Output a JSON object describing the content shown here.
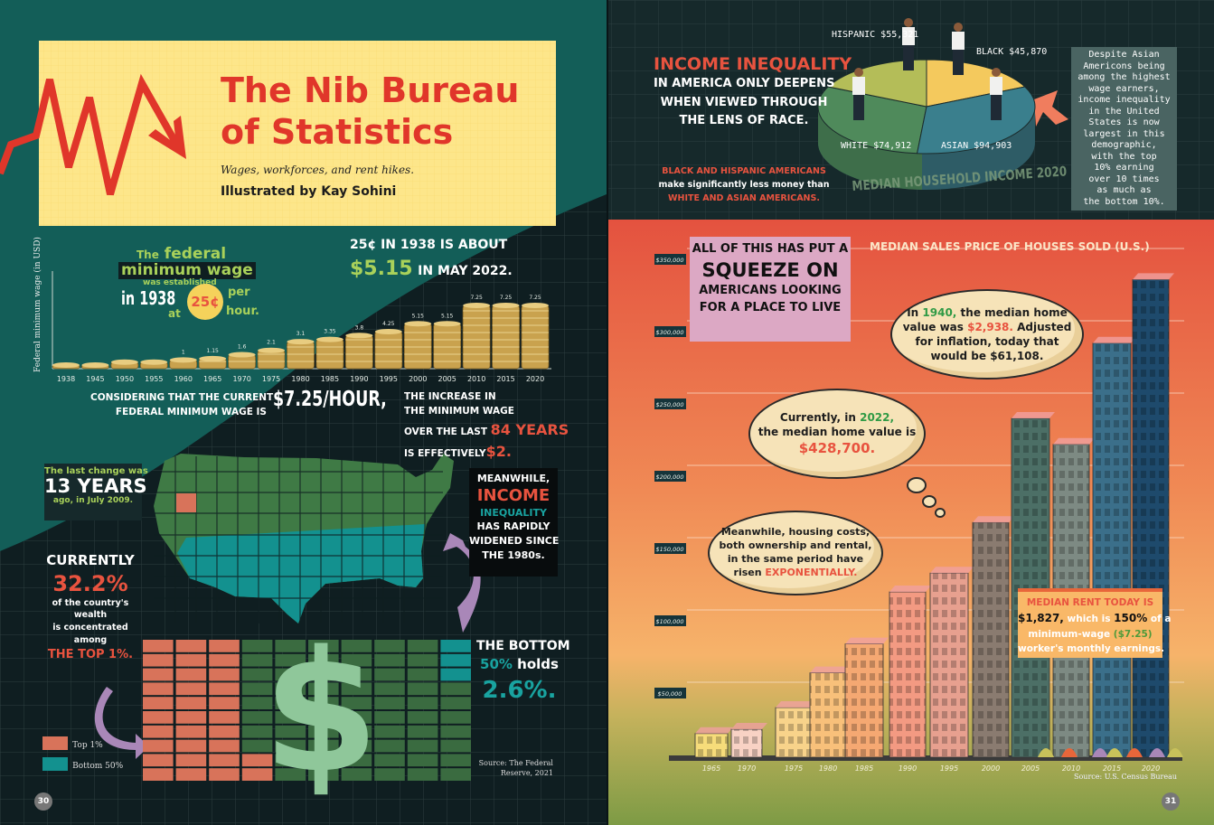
{
  "colors": {
    "red": "#e8533f",
    "teal": "#19a3a0",
    "green": "#a9d15a",
    "dark": "#0f1e21",
    "pageTeal": "#135e58",
    "yellow": "#fde68a",
    "coin": "#c9a24e",
    "top1": "#d8735a",
    "bottom50": "#13918f",
    "waffleRest": "#3a6b40"
  },
  "left_page": {
    "title_line1": "The Nib Bureau",
    "title_line2": "of Statistics",
    "subtitle": "Wages, workforces, and rent hikes.",
    "byline": "Illustrated by Kay Sohini",
    "min_wage_intro": {
      "the": "The",
      "federal": "federal",
      "minimum_wage": "minimum wage",
      "was_established": "was established",
      "in_1938": "in 1938",
      "at": "at",
      "coin": "25¢",
      "per": "per",
      "hour": "hour."
    },
    "inflation": {
      "line1": "25¢ IN 1938 IS ABOUT",
      "amount": "$5.15",
      "line2": "IN MAY 2022."
    },
    "considering": {
      "line1": "CONSIDERING THAT THE CURRENT",
      "line2": "FEDERAL MINIMUM WAGE IS",
      "amount": "$7.25/HOUR,",
      "r1": "THE INCREASE IN",
      "r2": "THE MINIMUM WAGE",
      "r3a": "OVER THE LAST",
      "r3b": "84 YEARS",
      "r4a": "IS EFFECTIVELY",
      "r4b": "$2."
    },
    "last_change": {
      "line1": "The last change was",
      "big": "13 YEARS",
      "line3": "ago, in July 2009."
    },
    "meanwhile": {
      "l1": "MEANWHILE,",
      "l2": "INCOME",
      "l3": "INEQUALITY",
      "l4": "HAS RAPIDLY",
      "l5": "WIDENED SINCE",
      "l6": "THE 1980s."
    },
    "currently": {
      "l1": "CURRENTLY",
      "pct": "32.2%",
      "l2": "of the country's",
      "l3": "wealth",
      "l4": "is concentrated",
      "l5": "among",
      "l6": "THE TOP 1%."
    },
    "bottom": {
      "l1": "THE BOTTOM",
      "l2a": "50%",
      "l2b": "holds",
      "pct": "2.6%."
    },
    "source": {
      "l1": "Source: The Federal",
      "l2": "Reserve, 2021"
    },
    "page_number": "30"
  },
  "right_page": {
    "income": {
      "h": "INCOME INEQUALITY",
      "l1": "IN AMERICA ONLY DEEPENS",
      "l2": "WHEN VIEWED THROUGH",
      "l3": "THE LENS OF RACE.",
      "b1": "BLACK AND HISPANIC AMERICANS",
      "b2": "make significantly less money than",
      "b3": "WHITE AND ASIAN AMERICANS."
    },
    "asian_note": [
      "Despite Asian",
      "Americons being",
      "among the highest",
      "wage earners,",
      "income inequality",
      "in the United",
      "States is now",
      "largest in this",
      "demographic,",
      "with the top",
      "10% earning",
      "over 10 times",
      "as much as",
      "the bottom 10%."
    ],
    "squeeze": {
      "l1": "ALL OF THIS HAS PUT A",
      "l2": "SQUEEZE ON",
      "l3": "AMERICANS LOOKING",
      "l4": "FOR A PLACE TO LIVE"
    },
    "cloud_1940": {
      "a": "In ",
      "year": "1940,",
      "b": " the median home",
      "c": "value was ",
      "price": "$2,938.",
      "d": " Adjusted",
      "e": "for inflation, today that",
      "f": "would be $61,108."
    },
    "cloud_2022": {
      "a": "Currently, in ",
      "year": "2022,",
      "b": "the median home value is",
      "price": "$428,700."
    },
    "cloud_meanwhile": {
      "a": "Meanwhile, housing costs,",
      "b": "both ownership and rental,",
      "c": "in the same period have",
      "d": "risen ",
      "e": "EXPONENTIALLY."
    },
    "rent": {
      "h": "MEDIAN RENT TODAY IS",
      "amount": "$1,827,",
      "a": " which is ",
      "pct": "150%",
      "b": " of a",
      "c": "minimum-wage ",
      "wage": "($7.25)",
      "d": "worker's monthly earnings."
    },
    "source": "Source: U.S. Census Bureau",
    "page_number": "31"
  },
  "chart_data": [
    {
      "type": "bar",
      "ylabel": "Federal minimum wage (in USD)",
      "categories": [
        "1938",
        "1945",
        "1950",
        "1955",
        "1960",
        "1965",
        "1970",
        "1975",
        "1980",
        "1985",
        "1990",
        "1995",
        "2000",
        "2005",
        "2010",
        "2015",
        "2020"
      ],
      "values": [
        0.25,
        0.4,
        0.75,
        0.75,
        1.0,
        1.15,
        1.6,
        2.1,
        3.1,
        3.35,
        3.8,
        4.25,
        5.15,
        5.15,
        7.25,
        7.25,
        7.25
      ],
      "value_labels": [
        "",
        "",
        "",
        "",
        "1",
        "1.15",
        "1.6",
        "2.1",
        "3.1",
        "3.35",
        "3.8",
        "4.25",
        "5.15",
        "5.15",
        "7.25",
        "7.25",
        "7.25"
      ],
      "ylim": [
        0,
        7.25
      ]
    },
    {
      "type": "pie",
      "title": "MEDIAN HOUSEHOLD INCOME 2020",
      "slices": [
        {
          "label": "WHITE $74,912",
          "value": 74912,
          "color": "#4f8a5b"
        },
        {
          "label": "HISPANIC $55,321",
          "value": 55321,
          "color": "#b4bd58"
        },
        {
          "label": "BLACK $45,870",
          "value": 45870,
          "color": "#f4c95d"
        },
        {
          "label": "ASIAN $94,903",
          "value": 94903,
          "color": "#3a7f8d"
        }
      ]
    },
    {
      "type": "waffle",
      "legend": [
        {
          "label": "Top 1%",
          "value": 32.2,
          "color": "#d8735a"
        },
        {
          "label": "Bottom 50%",
          "value": 2.6,
          "color": "#13918f"
        }
      ],
      "total": 100
    },
    {
      "type": "bar",
      "title": "MEDIAN SALES PRICE OF HOUSES SOLD (U.S.)",
      "categories": [
        "1965",
        "1970",
        "1975",
        "1980",
        "1985",
        "1990",
        "1995",
        "2000",
        "2005",
        "2010",
        "2015",
        "2020"
      ],
      "values": [
        22000,
        25000,
        40000,
        64000,
        84000,
        120000,
        133000,
        168000,
        240000,
        222000,
        292000,
        336000
      ],
      "yticks": [
        "$50,000",
        "$100,000",
        "$150,000",
        "$200,000",
        "$250,000",
        "$300,000",
        "$350,000"
      ],
      "ytick_values": [
        50000,
        100000,
        150000,
        200000,
        250000,
        300000,
        350000
      ],
      "ylim": [
        0,
        350000
      ]
    }
  ]
}
